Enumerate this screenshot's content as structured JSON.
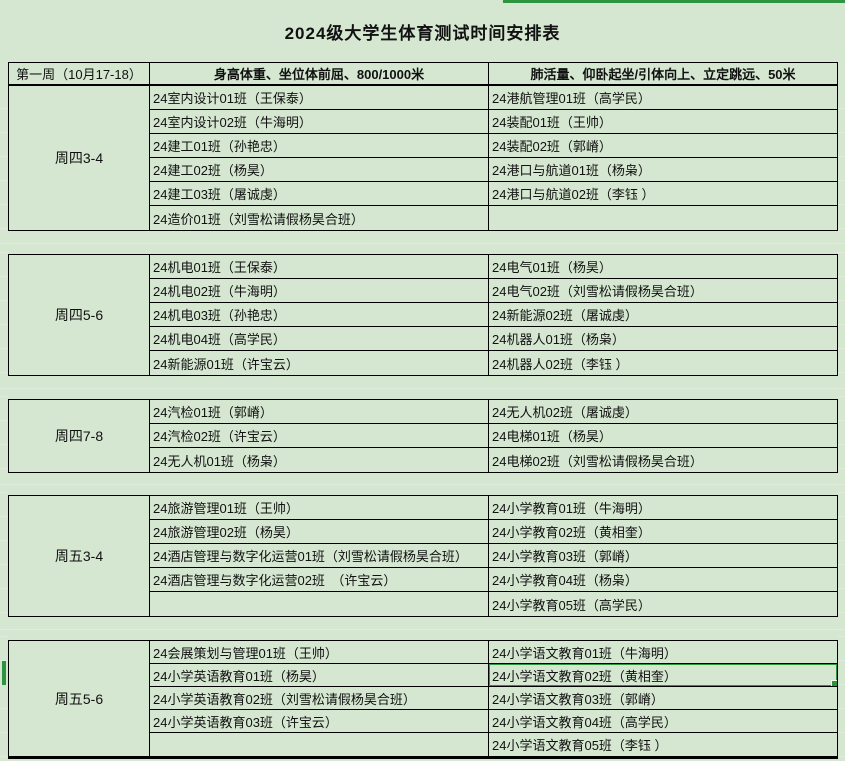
{
  "title": "2024级大学生体育测试时间安排表",
  "header": {
    "week_label": "第一周（10月17-18）",
    "measure_group_1": "身高体重、坐位体前屈、800/1000米",
    "measure_group_2": "肺活量、仰卧起坐/引体向上、立定跳远、50米"
  },
  "colors": {
    "background": "#d5e7d1",
    "table_border": "#000000",
    "selection_green": "#2f9440"
  },
  "selection": {
    "selected_cell_text": "24小学语文教育02班（黄相奎）",
    "section_index": 4,
    "row_index": 1,
    "column": "right"
  },
  "sections": [
    {
      "period": "周四3-4",
      "rows": [
        {
          "left": "24室内设计01班（王保泰）",
          "right": "24港航管理01班（高学民）"
        },
        {
          "left": "24室内设计02班（牛海明）",
          "right": "24装配01班（王帅）"
        },
        {
          "left": "24建工01班（孙艳忠）",
          "right": "24装配02班（郭嵴）"
        },
        {
          "left": "24建工02班（杨昊）",
          "right": "24港口与航道01班（杨枭）"
        },
        {
          "left": "24建工03班（屠诚虔）",
          "right": "24港口与航道02班（李钰 ）"
        },
        {
          "left": "24造价01班（刘雪松请假杨昊合班）",
          "right": ""
        }
      ]
    },
    {
      "period": "周四5-6",
      "rows": [
        {
          "left": "24机电01班（王保泰）",
          "right": "24电气01班（杨昊）"
        },
        {
          "left": "24机电02班（牛海明）",
          "right": "24电气02班（刘雪松请假杨昊合班）"
        },
        {
          "left": "24机电03班（孙艳忠）",
          "right": "24新能源02班（屠诚虔）"
        },
        {
          "left": "24机电04班（高学民）",
          "right": "24机器人01班（杨枭）"
        },
        {
          "left": "24新能源01班（许宝云）",
          "right": "24机器人02班（李钰 ）"
        }
      ]
    },
    {
      "period": "周四7-8",
      "rows": [
        {
          "left": "24汽检01班（郭嵴）",
          "right": "24无人机02班（屠诚虔）"
        },
        {
          "left": "24汽检02班（许宝云）",
          "right": "24电梯01班（杨昊）"
        },
        {
          "left": "24无人机01班（杨枭）",
          "right": "24电梯02班（刘雪松请假杨昊合班）"
        }
      ]
    },
    {
      "period": "周五3-4",
      "rows": [
        {
          "left": "24旅游管理01班（王帅）",
          "right": "24小学教育01班（牛海明）"
        },
        {
          "left": "24旅游管理02班（杨昊）",
          "right": "24小学教育02班（黄相奎）"
        },
        {
          "left": "24酒店管理与数字化运营01班（刘雪松请假杨昊合班）",
          "right": "24小学教育03班（郭嵴）"
        },
        {
          "left": "24酒店管理与数字化运营02班　（许宝云）",
          "right": "24小学教育04班（杨枭）"
        },
        {
          "left": "",
          "right": "24小学教育05班（高学民）"
        }
      ]
    },
    {
      "period": "周五5-6",
      "rows": [
        {
          "left": "24会展策划与管理01班（王帅）",
          "right": "24小学语文教育01班（牛海明）"
        },
        {
          "left": "24小学英语教育01班（杨昊）",
          "right": "24小学语文教育02班（黄相奎）"
        },
        {
          "left": "24小学英语教育02班（刘雪松请假杨昊合班）",
          "right": "24小学语文教育03班（郭嵴）"
        },
        {
          "left": "24小学英语教育03班（许宝云）",
          "right": "24小学语文教育04班（高学民）"
        },
        {
          "left": "",
          "right": "24小学语文教育05班（李钰 ）"
        }
      ]
    }
  ]
}
